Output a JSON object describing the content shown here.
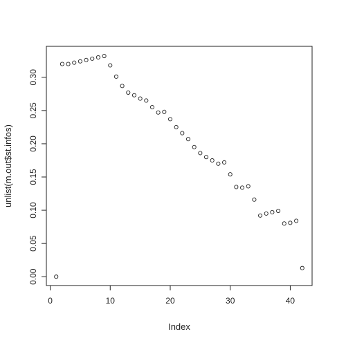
{
  "chart_data": {
    "type": "scatter",
    "title": "",
    "xlabel": "Index",
    "ylabel": "unlist(m.out$st.infos)",
    "xlim": [
      -0.64,
      43.64
    ],
    "ylim": [
      -0.0133,
      0.3466
    ],
    "x_ticks": [
      0,
      10,
      20,
      30,
      40
    ],
    "x_tick_labels": [
      "0",
      "10",
      "20",
      "30",
      "40"
    ],
    "y_ticks": [
      0.0,
      0.05,
      0.1,
      0.15,
      0.2,
      0.25,
      0.3
    ],
    "y_tick_labels": [
      "0.00",
      "0.05",
      "0.10",
      "0.15",
      "0.20",
      "0.25",
      "0.30"
    ],
    "grid": false,
    "marker": "open-circle",
    "series": [
      {
        "x": [
          1,
          2,
          3,
          4,
          5,
          6,
          7,
          8,
          9,
          10,
          11,
          12,
          13,
          14,
          15,
          16,
          17,
          18,
          19,
          20,
          21,
          22,
          23,
          24,
          25,
          26,
          27,
          28,
          29,
          30,
          31,
          32,
          33,
          34,
          35,
          36,
          37,
          38,
          39,
          40,
          41,
          42
        ],
        "y": [
          0.0,
          0.32,
          0.32,
          0.322,
          0.324,
          0.326,
          0.328,
          0.33,
          0.332,
          0.318,
          0.301,
          0.287,
          0.277,
          0.273,
          0.268,
          0.265,
          0.255,
          0.247,
          0.248,
          0.237,
          0.225,
          0.216,
          0.207,
          0.195,
          0.186,
          0.18,
          0.175,
          0.17,
          0.172,
          0.154,
          0.135,
          0.134,
          0.136,
          0.116,
          0.092,
          0.095,
          0.097,
          0.099,
          0.08,
          0.081,
          0.084,
          0.013
        ]
      }
    ]
  }
}
